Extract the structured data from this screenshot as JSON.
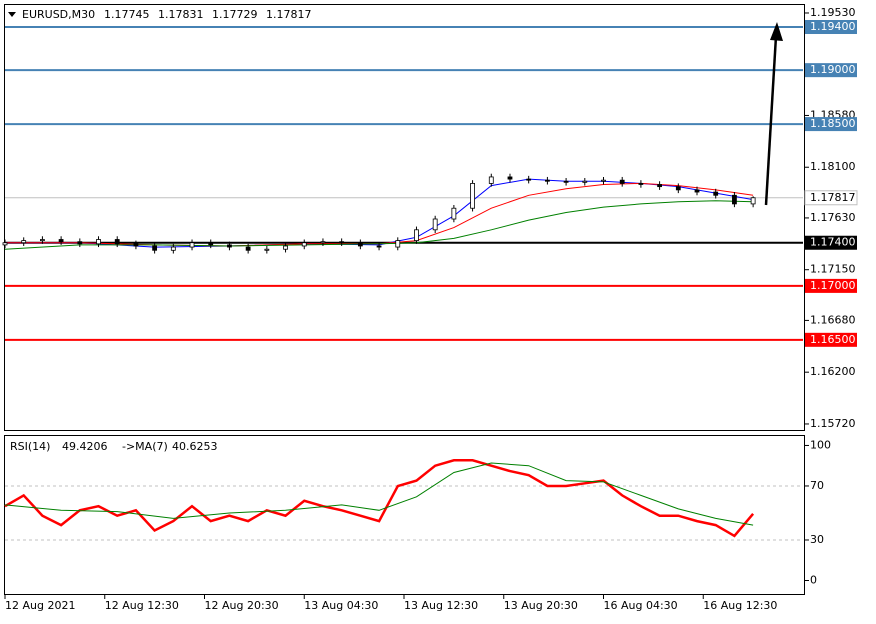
{
  "chart_data": [
    {
      "type": "candlestick",
      "title": "EURUSD,M30",
      "ohlc_header": [
        1.17745,
        1.17831,
        1.17729,
        1.17817
      ],
      "color": "#000000",
      "x": [
        0,
        3,
        6,
        9,
        12,
        15,
        18,
        21,
        24,
        27,
        30,
        33,
        36,
        39,
        42,
        45,
        48,
        51,
        54,
        57,
        60,
        63,
        66,
        69,
        72,
        75,
        78,
        81,
        84,
        87,
        90,
        93,
        96,
        99,
        102,
        105,
        108,
        111,
        114,
        117,
        120
      ],
      "open": [
        1.1738,
        1.174,
        1.1742,
        1.1743,
        1.1741,
        1.1739,
        1.1743,
        1.1739,
        1.1737,
        1.1733,
        1.1736,
        1.174,
        1.1738,
        1.1736,
        1.1733,
        1.1734,
        1.1737,
        1.174,
        1.1741,
        1.174,
        1.1737,
        1.1736,
        1.1742,
        1.1752,
        1.1762,
        1.1772,
        1.1795,
        1.1801,
        1.1799,
        1.1798,
        1.1797,
        1.1796,
        1.1797,
        1.1798,
        1.1795,
        1.1794,
        1.1792,
        1.1789,
        1.1787,
        1.1784,
        1.1776
      ],
      "high": [
        1.1743,
        1.1745,
        1.1746,
        1.1746,
        1.1744,
        1.1746,
        1.1746,
        1.1742,
        1.174,
        1.1739,
        1.1743,
        1.1743,
        1.1741,
        1.1739,
        1.1737,
        1.174,
        1.1743,
        1.1744,
        1.1744,
        1.1743,
        1.174,
        1.1745,
        1.1755,
        1.1765,
        1.1775,
        1.1798,
        1.1804,
        1.1804,
        1.1802,
        1.1801,
        1.18,
        1.18,
        1.1801,
        1.1801,
        1.1798,
        1.1797,
        1.1795,
        1.1792,
        1.179,
        1.1787,
        1.17831
      ],
      "low": [
        1.1735,
        1.1737,
        1.1739,
        1.1738,
        1.1736,
        1.1736,
        1.1736,
        1.1734,
        1.173,
        1.173,
        1.1733,
        1.1735,
        1.1733,
        1.173,
        1.173,
        1.1731,
        1.1734,
        1.1737,
        1.1737,
        1.1734,
        1.1733,
        1.1733,
        1.1739,
        1.1749,
        1.1759,
        1.1769,
        1.1792,
        1.1796,
        1.1795,
        1.1794,
        1.1793,
        1.1793,
        1.1794,
        1.1792,
        1.1791,
        1.1789,
        1.1786,
        1.1784,
        1.1781,
        1.1773,
        1.17729
      ],
      "close": [
        1.174,
        1.1742,
        1.1743,
        1.1741,
        1.1739,
        1.1743,
        1.1739,
        1.1737,
        1.1733,
        1.1736,
        1.174,
        1.1738,
        1.1736,
        1.1733,
        1.1734,
        1.1737,
        1.174,
        1.1741,
        1.174,
        1.1737,
        1.1736,
        1.1742,
        1.1752,
        1.1762,
        1.1772,
        1.1795,
        1.1801,
        1.1799,
        1.1798,
        1.1797,
        1.1796,
        1.1797,
        1.1798,
        1.1795,
        1.1794,
        1.1792,
        1.1789,
        1.1787,
        1.1784,
        1.1776,
        1.17817
      ],
      "overlays": [
        {
          "color": "#0000ff",
          "x": [
            0,
            12,
            24,
            36,
            48,
            60,
            66,
            72,
            78,
            84,
            90,
            96,
            102,
            108,
            114,
            120
          ],
          "values": [
            1.174,
            1.174,
            1.1736,
            1.1737,
            1.1739,
            1.1738,
            1.1745,
            1.1765,
            1.1793,
            1.1799,
            1.1797,
            1.1797,
            1.1795,
            1.1792,
            1.1786,
            1.178
          ]
        },
        {
          "color": "#ff0000",
          "x": [
            0,
            12,
            24,
            36,
            48,
            60,
            66,
            72,
            78,
            84,
            90,
            96,
            102,
            108,
            114,
            120
          ],
          "values": [
            1.174,
            1.174,
            1.1738,
            1.1737,
            1.1739,
            1.1739,
            1.1742,
            1.1754,
            1.1772,
            1.1784,
            1.179,
            1.1794,
            1.1795,
            1.1793,
            1.1789,
            1.1784
          ]
        },
        {
          "color": "#008000",
          "x": [
            0,
            12,
            24,
            36,
            48,
            60,
            66,
            72,
            78,
            84,
            90,
            96,
            102,
            108,
            114,
            120
          ],
          "values": [
            1.1734,
            1.1738,
            1.1738,
            1.1737,
            1.1738,
            1.1739,
            1.174,
            1.1744,
            1.1752,
            1.1761,
            1.1768,
            1.1773,
            1.1776,
            1.1778,
            1.1779,
            1.1778
          ]
        }
      ],
      "xlim": [
        0,
        128
      ],
      "ylim": [
        1.15664,
        1.19604
      ],
      "yticks": [
        {
          "value": 1.1953,
          "label": "1.19530"
        },
        {
          "value": 1.1858,
          "label": "1.18580"
        },
        {
          "value": 1.181,
          "label": "1.18100"
        },
        {
          "value": 1.1763,
          "label": "1.17630"
        },
        {
          "value": 1.1715,
          "label": "1.17150"
        },
        {
          "value": 1.1668,
          "label": "1.16680"
        },
        {
          "value": 1.162,
          "label": "1.16200"
        },
        {
          "value": 1.1572,
          "label": "1.15720"
        }
      ],
      "levels": [
        {
          "value": 1.194,
          "label": "1.19400",
          "color": "#4682b4"
        },
        {
          "value": 1.19,
          "label": "1.19000",
          "color": "#4682b4"
        },
        {
          "value": 1.185,
          "label": "1.18500",
          "color": "#4682b4"
        },
        {
          "value": 1.174,
          "label": "1.17400",
          "color": "#000000"
        },
        {
          "value": 1.17,
          "label": "1.17000",
          "color": "#ff0000"
        },
        {
          "value": 1.165,
          "label": "1.16500",
          "color": "#ff0000"
        }
      ],
      "last_price": {
        "value": 1.17817,
        "label": "1.17817",
        "color": "#c0c0c0"
      }
    },
    {
      "type": "line",
      "series": [
        {
          "name": "RSI(14)",
          "last_value": 49.4206,
          "color": "#ff0000",
          "x": [
            0,
            3,
            6,
            9,
            12,
            15,
            18,
            21,
            24,
            27,
            30,
            33,
            36,
            39,
            42,
            45,
            48,
            51,
            54,
            57,
            60,
            63,
            66,
            69,
            72,
            75,
            78,
            81,
            84,
            87,
            90,
            93,
            96,
            99,
            102,
            105,
            108,
            111,
            114,
            117,
            120
          ],
          "values": [
            55,
            63,
            48,
            41,
            52,
            55,
            48,
            52,
            37,
            44,
            55,
            44,
            48,
            44,
            52,
            48,
            59,
            55,
            52,
            48,
            44,
            70,
            74,
            85,
            89,
            89,
            85,
            81,
            78,
            70,
            70,
            72,
            74,
            63,
            55,
            48,
            48,
            44,
            41,
            33,
            49.4
          ]
        },
        {
          "name": "->MA(7)",
          "last_value": 40.6253,
          "color": "#008000",
          "x": [
            0,
            9,
            18,
            27,
            36,
            45,
            54,
            60,
            66,
            72,
            78,
            84,
            90,
            96,
            102,
            108,
            114,
            120
          ],
          "values": [
            56,
            52,
            51,
            46,
            50,
            52,
            56,
            52,
            62,
            80,
            87,
            85,
            74,
            73,
            63,
            53,
            46,
            41
          ]
        }
      ],
      "xlim": [
        0,
        128
      ],
      "xticks": [
        {
          "value": 0,
          "label": "12 Aug 2021"
        },
        {
          "value": 16,
          "label": "12 Aug 12:30"
        },
        {
          "value": 32,
          "label": "12 Aug 20:30"
        },
        {
          "value": 48,
          "label": "13 Aug 04:30"
        },
        {
          "value": 64,
          "label": "13 Aug 12:30"
        },
        {
          "value": 80,
          "label": "13 Aug 20:30"
        },
        {
          "value": 96,
          "label": "16 Aug 04:30"
        },
        {
          "value": 112,
          "label": "16 Aug 12:30"
        }
      ],
      "ylim": [
        -10,
        107
      ],
      "yticks": [
        0,
        30,
        70,
        100
      ],
      "dashed_levels": [
        30,
        70
      ]
    }
  ]
}
